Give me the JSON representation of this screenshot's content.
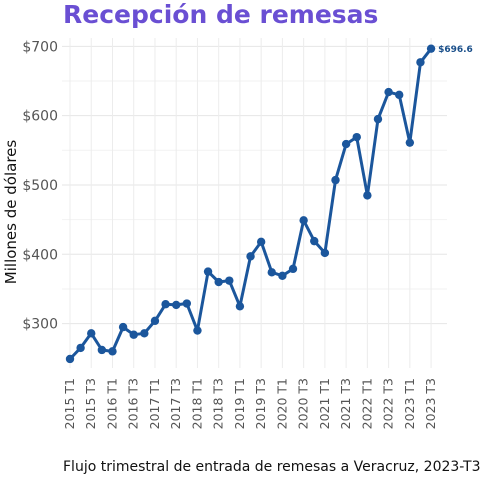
{
  "chart_data": {
    "type": "line",
    "title": "Recepción de remesas",
    "caption": "Flujo trimestral de entrada de remesas a Veracruz, 2023-T3",
    "ylabel": "Millones de dólares",
    "xlabel": "",
    "ylim": [
      236,
      712
    ],
    "yticks": [
      300,
      400,
      500,
      600,
      700
    ],
    "ytick_labels": [
      "$300",
      "$400",
      "$500",
      "$600",
      "$700"
    ],
    "grid": true,
    "colors": {
      "line": "#1b569c",
      "title": "#6a4fd3",
      "label": "#1a4f8a"
    },
    "last_value_label": "$696.6",
    "x": [
      "2015 T1",
      "2015 T2",
      "2015 T3",
      "2015 T4",
      "2016 T1",
      "2016 T2",
      "2016 T3",
      "2016 T4",
      "2017 T1",
      "2017 T2",
      "2017 T3",
      "2017 T4",
      "2018 T1",
      "2018 T2",
      "2018 T3",
      "2018 T4",
      "2019 T1",
      "2019 T2",
      "2019 T3",
      "2019 T4",
      "2020 T1",
      "2020 T2",
      "2020 T3",
      "2020 T4",
      "2021 T1",
      "2021 T2",
      "2021 T3",
      "2021 T4",
      "2022 T1",
      "2022 T2",
      "2022 T3",
      "2022 T4",
      "2023 T1",
      "2023 T2",
      "2023 T3"
    ],
    "xtick_labels": [
      "2015 T1",
      "2015 T3",
      "2016 T1",
      "2016 T3",
      "2017 T1",
      "2017 T3",
      "2018 T1",
      "2018 T3",
      "2019 T1",
      "2019 T3",
      "2020 T1",
      "2020 T3",
      "2021 T1",
      "2021 T3",
      "2022 T1",
      "2022 T3",
      "2023 T1",
      "2023 T3"
    ],
    "series": [
      {
        "values": [
          249,
          265,
          286,
          262,
          260,
          295,
          284,
          286,
          304,
          328,
          327,
          329,
          290,
          375,
          360,
          362,
          325,
          397,
          418,
          374,
          369,
          379,
          449,
          419,
          402,
          507,
          559,
          569,
          485,
          595,
          634,
          630,
          561,
          677,
          696.6
        ]
      }
    ]
  }
}
